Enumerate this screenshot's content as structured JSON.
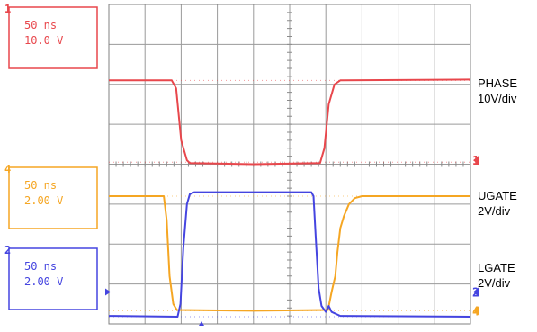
{
  "chart_data": {
    "type": "line",
    "grid": true,
    "x_divisions": 10,
    "y_divisions": 8,
    "x_unit": "ns",
    "x_range": [
      0,
      500
    ],
    "channels": [
      {
        "id": "ch1",
        "marker": "1",
        "timebase": "50 ns",
        "scale": "10.0 V",
        "color": "#e8474c",
        "signal_label": "PHASE",
        "scale_label": "10V/div",
        "high_div": 6.1,
        "low_div": 4.05,
        "ground_div": 4.1,
        "points": [
          [
            0,
            6.1
          ],
          [
            87,
            6.1
          ],
          [
            93,
            5.9
          ],
          [
            100,
            4.6
          ],
          [
            108,
            4.1
          ],
          [
            112,
            4.03
          ],
          [
            200,
            4.0
          ],
          [
            292,
            4.03
          ],
          [
            298,
            4.4
          ],
          [
            304,
            5.5
          ],
          [
            312,
            6.0
          ],
          [
            320,
            6.1
          ],
          [
            500,
            6.12
          ]
        ]
      },
      {
        "id": "ch4",
        "marker": "4",
        "timebase": "50 ns",
        "scale": "2.00 V",
        "color": "#f5a623",
        "signal_label": "UGATE",
        "scale_label": "2V/div",
        "high_div": 3.2,
        "low_div": 0.33,
        "ground_div": 0.33,
        "points": [
          [
            0,
            3.2
          ],
          [
            76,
            3.2
          ],
          [
            80,
            2.6
          ],
          [
            84,
            1.2
          ],
          [
            89,
            0.5
          ],
          [
            94,
            0.35
          ],
          [
            200,
            0.33
          ],
          [
            303,
            0.35
          ],
          [
            308,
            0.8
          ],
          [
            313,
            1.2
          ],
          [
            316,
            1.8
          ],
          [
            320,
            2.4
          ],
          [
            325,
            2.7
          ],
          [
            332,
            3.0
          ],
          [
            340,
            3.15
          ],
          [
            350,
            3.2
          ],
          [
            500,
            3.2
          ]
        ]
      },
      {
        "id": "ch2",
        "marker": "2",
        "timebase": "50 ns",
        "scale": "2.00 V",
        "color": "#4545e0",
        "signal_label": "LGATE",
        "scale_label": "2V/div",
        "high_div": 3.28,
        "low_div": 0.18,
        "ground_div": 0.8,
        "points": [
          [
            0,
            0.2
          ],
          [
            95,
            0.18
          ],
          [
            99,
            0.5
          ],
          [
            103,
            1.9
          ],
          [
            108,
            3.0
          ],
          [
            112,
            3.25
          ],
          [
            118,
            3.3
          ],
          [
            280,
            3.3
          ],
          [
            283,
            3.2
          ],
          [
            286,
            2.2
          ],
          [
            290,
            0.9
          ],
          [
            294,
            0.45
          ],
          [
            300,
            0.3
          ],
          [
            304,
            0.45
          ],
          [
            308,
            0.3
          ],
          [
            320,
            0.2
          ],
          [
            500,
            0.18
          ]
        ]
      }
    ]
  }
}
